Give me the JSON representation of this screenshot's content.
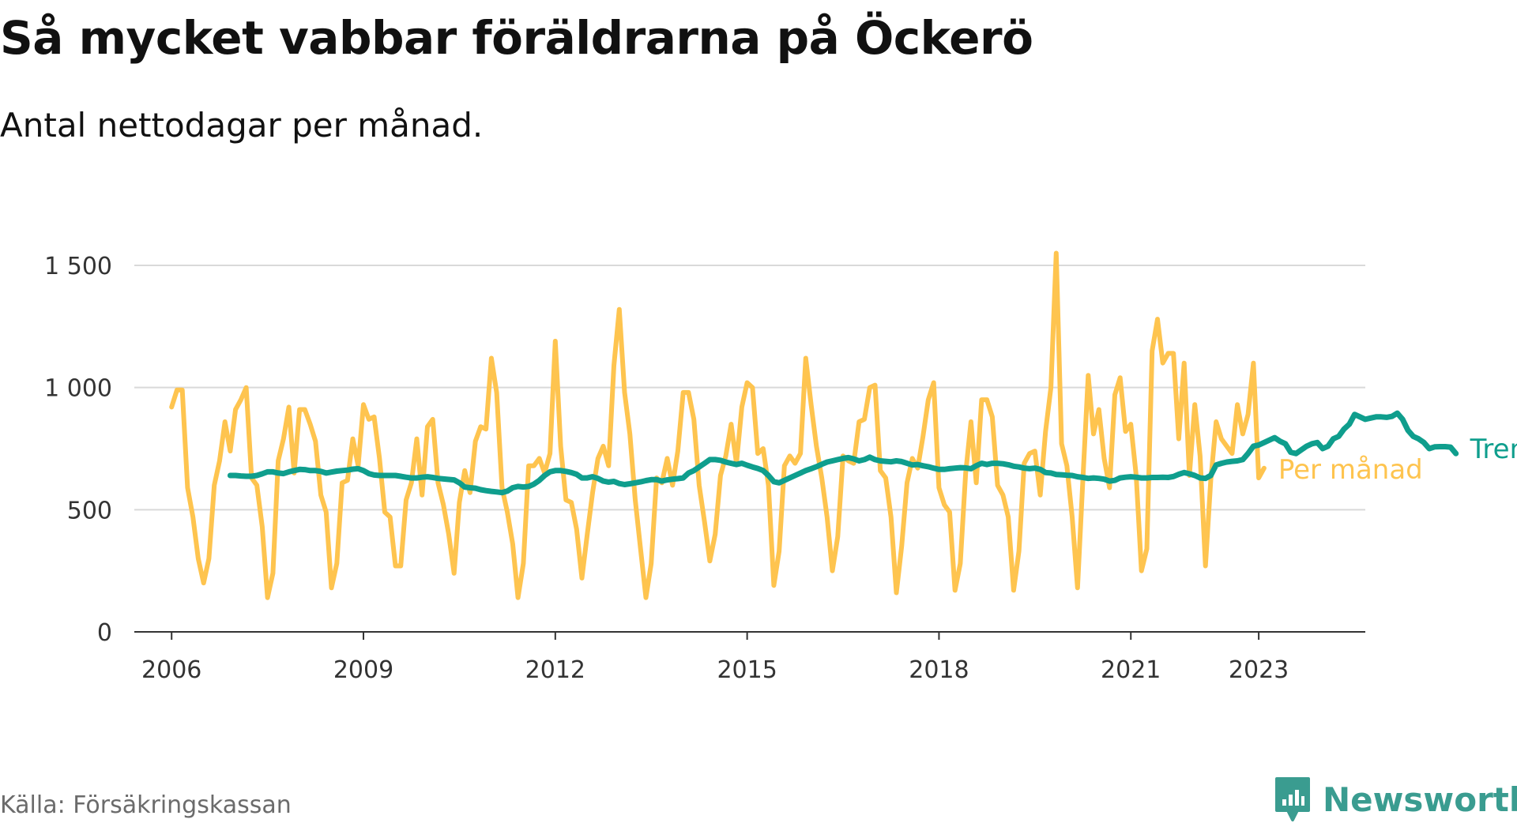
{
  "title": "Så mycket vabbar föräldrarna på Öckerö",
  "subtitle": "Antal nettodagar per månad.",
  "source": "Källa: Försäkringskassan",
  "brand": "Newsworthy",
  "colors": {
    "monthly": "#fec44f",
    "trend": "#0f9e8d",
    "grid": "#d9d9d9",
    "axis": "#333333",
    "text": "#333333"
  },
  "chart_data": {
    "type": "line",
    "title": "Så mycket vabbar föräldrarna på Öckerö",
    "subtitle": "Antal nettodagar per månad.",
    "xlabel": "",
    "ylabel": "",
    "ylim": [
      0,
      1500
    ],
    "xlim": [
      "2005-06",
      "2024-09"
    ],
    "grid": true,
    "legend": "direct labels at right end of lines",
    "yticks": [
      0,
      500,
      1000,
      1500
    ],
    "ytick_labels": [
      "0",
      "500",
      "1 000",
      "1 500"
    ],
    "xticks": [
      "2006-01",
      "2009-01",
      "2012-01",
      "2015-01",
      "2018-01",
      "2021-01",
      "2023-01"
    ],
    "xtick_labels": [
      "2006",
      "2009",
      "2012",
      "2015",
      "2018",
      "2021",
      "2023"
    ],
    "series": [
      {
        "name": "Per månad",
        "start": "2006-01",
        "values": [
          920,
          990,
          990,
          590,
          470,
          300,
          200,
          300,
          600,
          700,
          860,
          740,
          910,
          950,
          1000,
          630,
          600,
          430,
          140,
          240,
          700,
          790,
          920,
          650,
          910,
          910,
          850,
          780,
          560,
          490,
          180,
          280,
          610,
          620,
          790,
          680,
          930,
          870,
          880,
          710,
          490,
          470,
          270,
          270,
          540,
          610,
          790,
          560,
          840,
          870,
          610,
          520,
          400,
          240,
          530,
          660,
          570,
          780,
          840,
          830,
          1120,
          980,
          590,
          490,
          360,
          140,
          280,
          680,
          680,
          710,
          650,
          730,
          1190,
          760,
          540,
          530,
          420,
          220,
          400,
          570,
          710,
          760,
          680,
          1090,
          1320,
          980,
          810,
          540,
          340,
          140,
          280,
          630,
          610,
          710,
          600,
          740,
          980,
          980,
          870,
          600,
          450,
          290,
          400,
          640,
          720,
          850,
          690,
          920,
          1020,
          1000,
          730,
          750,
          600,
          190,
          330,
          680,
          720,
          690,
          730,
          1120,
          930,
          760,
          630,
          470,
          250,
          390,
          720,
          700,
          690,
          860,
          870,
          1000,
          1010,
          660,
          630,
          470,
          160,
          350,
          610,
          710,
          670,
          800,
          950,
          1020,
          590,
          520,
          490,
          170,
          280,
          650,
          860,
          610,
          950,
          950,
          880,
          600,
          560,
          470,
          170,
          330,
          690,
          730,
          740,
          560,
          820,
          1000,
          1550,
          770,
          680,
          470,
          180,
          620,
          1050,
          810,
          910,
          710,
          590,
          970,
          1040,
          820,
          850,
          640,
          250,
          340,
          1150,
          1280,
          1100,
          1140,
          1140,
          790,
          1100,
          640,
          930,
          720,
          270,
          620,
          860,
          790,
          760,
          730,
          930,
          810,
          890,
          1100,
          630,
          670
        ]
      },
      {
        "name": "Trend",
        "start": "2006-12",
        "values": [
          640,
          640,
          638,
          637,
          637,
          640,
          647,
          655,
          655,
          650,
          648,
          655,
          660,
          665,
          664,
          660,
          660,
          657,
          650,
          654,
          658,
          660,
          662,
          666,
          668,
          660,
          648,
          642,
          640,
          640,
          640,
          640,
          637,
          633,
          630,
          630,
          633,
          635,
          632,
          628,
          626,
          624,
          622,
          610,
          593,
          590,
          588,
          582,
          578,
          575,
          573,
          570,
          576,
          590,
          595,
          593,
          595,
          605,
          620,
          640,
          655,
          660,
          660,
          657,
          652,
          645,
          630,
          630,
          635,
          628,
          617,
          613,
          616,
          607,
          603,
          606,
          610,
          614,
          619,
          623,
          623,
          617,
          622,
          625,
          627,
          630,
          650,
          660,
          675,
          690,
          705,
          705,
          702,
          695,
          690,
          685,
          690,
          682,
          675,
          669,
          660,
          640,
          615,
          610,
          620,
          630,
          640,
          650,
          660,
          668,
          676,
          686,
          695,
          700,
          705,
          710,
          713,
          708,
          700,
          705,
          715,
          705,
          700,
          698,
          696,
          700,
          697,
          690,
          683,
          685,
          680,
          676,
          670,
          665,
          665,
          668,
          670,
          672,
          671,
          668,
          680,
          690,
          685,
          690,
          690,
          688,
          684,
          678,
          675,
          670,
          668,
          670,
          665,
          652,
          650,
          644,
          643,
          641,
          640,
          635,
          632,
          628,
          630,
          628,
          625,
          617,
          620,
          630,
          633,
          635,
          633,
          630,
          630,
          632,
          632,
          633,
          632,
          636,
          645,
          652,
          647,
          640,
          630,
          628,
          640,
          683,
          690,
          695,
          698,
          700,
          705,
          730,
          760,
          765,
          775,
          785,
          795,
          780,
          770,
          735,
          730,
          745,
          760,
          770,
          775,
          750,
          760,
          790,
          800,
          830,
          850,
          890,
          880,
          870,
          875,
          880,
          880,
          878,
          882,
          895,
          870,
          825,
          800,
          790,
          775,
          750,
          757,
          758,
          758,
          756,
          730
        ]
      }
    ],
    "annotations": [
      {
        "text": "Trend",
        "series": "Trend"
      },
      {
        "text": "Per månad",
        "series": "Per månad"
      }
    ]
  }
}
